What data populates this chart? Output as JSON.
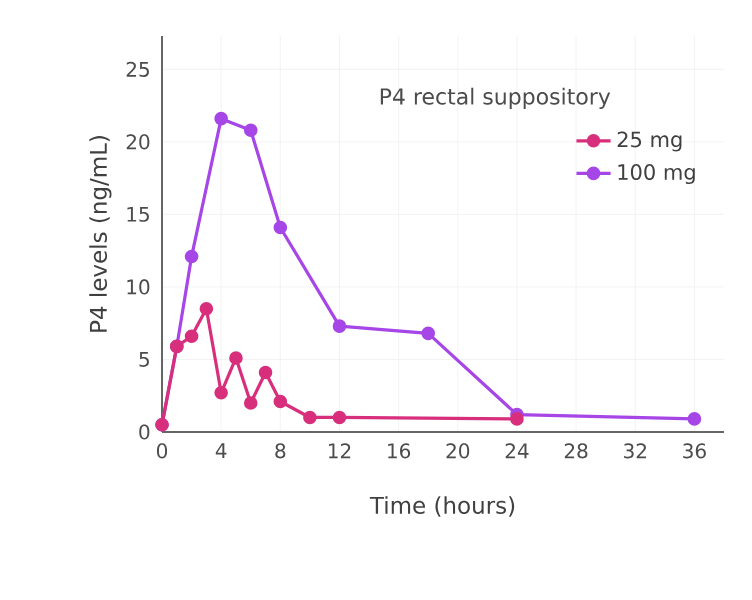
{
  "chart_data": {
    "type": "line",
    "title": "P4 rectal suppository",
    "xlabel": "Time (hours)",
    "ylabel": "P4 levels (ng/mL)",
    "xlim": [
      0,
      38
    ],
    "ylim": [
      0,
      27.3
    ],
    "xticks": [
      0,
      4,
      8,
      12,
      16,
      20,
      24,
      28,
      32,
      36
    ],
    "yticks": [
      0,
      5,
      10,
      15,
      20,
      25
    ],
    "grid": true,
    "legend": "top right",
    "marker": "circle",
    "line_style": "solid",
    "series": [
      {
        "name": "25 mg",
        "color": "#d82f7d",
        "x": [
          0,
          1,
          2,
          3,
          4,
          5,
          6,
          7,
          8,
          10,
          12,
          24
        ],
        "values": [
          0.5,
          5.9,
          6.6,
          8.5,
          2.7,
          5.1,
          2.0,
          4.1,
          2.1,
          1.0,
          1.0,
          0.9
        ]
      },
      {
        "name": "100 mg",
        "color": "#a646e6",
        "x": [
          0,
          1,
          2,
          4,
          6,
          8,
          12,
          18,
          24,
          36
        ],
        "values": [
          0.5,
          5.9,
          12.1,
          21.6,
          20.8,
          14.1,
          7.3,
          6.8,
          1.2,
          0.9
        ]
      }
    ]
  }
}
